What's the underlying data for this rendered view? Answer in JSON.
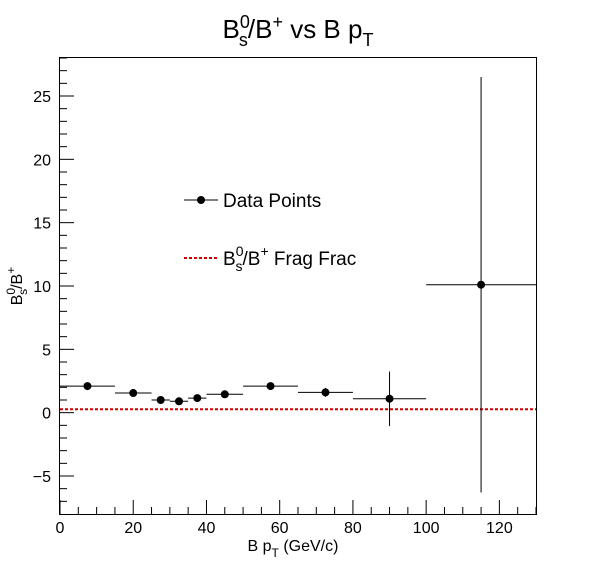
{
  "chart_data": {
    "type": "scatter",
    "title": {
      "main": "B",
      "sup": "0",
      "sub": "s",
      "rest": "/B",
      "sup2": "+",
      "mid": " vs B p",
      "sub2": "T"
    },
    "xlabel": {
      "main": "B p",
      "sub": "T",
      "rest": " (GeV/c)"
    },
    "ylabel": {
      "main": "B",
      "sup": "0",
      "sub": "s",
      "rest": "/B",
      "sup2": "+"
    },
    "xlim": [
      0,
      130
    ],
    "ylim": [
      -8,
      28
    ],
    "xticks": [
      "0",
      "20",
      "40",
      "60",
      "80",
      "100",
      "120"
    ],
    "xtick_values": [
      0,
      20,
      40,
      60,
      80,
      100,
      120
    ],
    "yticks": [
      "−5",
      "0",
      "5",
      "10",
      "15",
      "20",
      "25"
    ],
    "ytick_values": [
      -5,
      0,
      5,
      10,
      15,
      20,
      25
    ],
    "series": [
      {
        "name": "Data Points",
        "color": "#000000",
        "points": [
          {
            "x": 7.5,
            "y": 2.1,
            "xerr": 7.5,
            "yerr": 0.25
          },
          {
            "x": 20.0,
            "y": 1.55,
            "xerr": 5.0,
            "yerr": 0.2
          },
          {
            "x": 27.5,
            "y": 1.0,
            "xerr": 2.5,
            "yerr": 0.15
          },
          {
            "x": 32.5,
            "y": 0.9,
            "xerr": 2.5,
            "yerr": 0.15
          },
          {
            "x": 37.5,
            "y": 1.15,
            "xerr": 2.5,
            "yerr": 0.15
          },
          {
            "x": 45.0,
            "y": 1.45,
            "xerr": 5.0,
            "yerr": 0.2
          },
          {
            "x": 57.5,
            "y": 2.1,
            "xerr": 7.5,
            "yerr": 0.25
          },
          {
            "x": 72.5,
            "y": 1.6,
            "xerr": 7.5,
            "yerr": 0.35
          },
          {
            "x": 90.0,
            "y": 1.1,
            "xerr": 10.0,
            "yerr": 2.15
          },
          {
            "x": 115.0,
            "y": 10.1,
            "xerr": 15.0,
            "yerr": 16.4
          }
        ]
      },
      {
        "name": "Frag Frac",
        "color": "#cc0000",
        "line_y": 0.27
      }
    ],
    "legend": [
      {
        "label": "Data Points"
      },
      {
        "label": {
          "main": "B",
          "sup": "0",
          "sub": "s",
          "rest": "/B",
          "sup2": "+",
          "tail": " Frag Frac"
        }
      }
    ]
  }
}
